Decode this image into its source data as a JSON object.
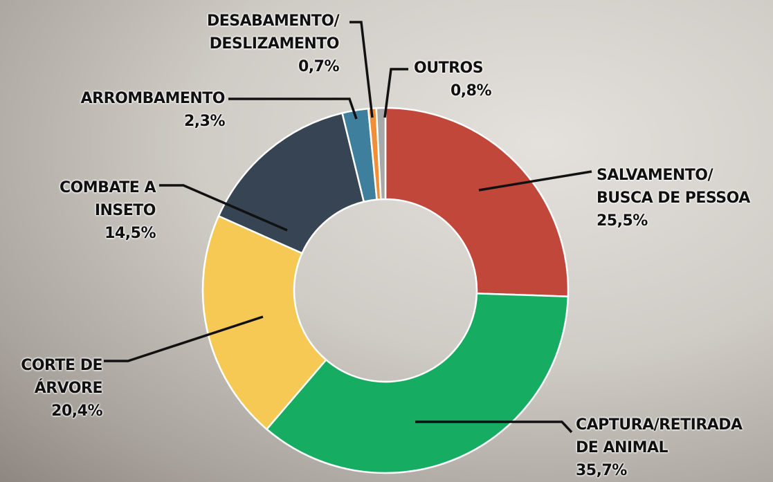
{
  "chart_data": {
    "type": "donut",
    "categories": [
      "SALVAMENTO/\nBUSCA DE PESSOA",
      "CAPTURA/RETIRADA\nDE ANIMAL",
      "CORTE DE\nÁRVORE",
      "COMBATE A\nINSETO",
      "ARROMBAMENTO",
      "DESABAMENTO/\nDESLIZAMENTO",
      "OUTROS"
    ],
    "values": [
      25.5,
      35.7,
      20.4,
      14.5,
      2.3,
      0.7,
      0.8
    ],
    "value_labels": [
      "25,5%",
      "35,7%",
      "20,4%",
      "14,5%",
      "2,3%",
      "0,7%",
      "0,8%"
    ],
    "colors": [
      "#c0473a",
      "#16ad62",
      "#f6c955",
      "#374453",
      "#3f7f9e",
      "#f08f38",
      "#a7a9a8"
    ]
  }
}
